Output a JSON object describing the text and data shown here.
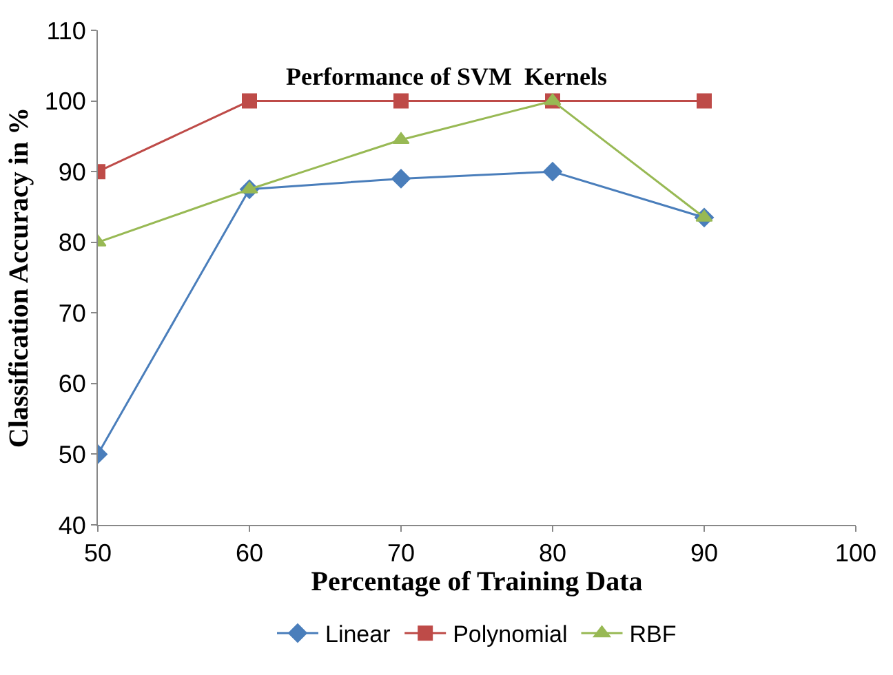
{
  "chart_data": {
    "type": "line",
    "title": "Performance of SVM  Kernels",
    "xlabel": "Percentage of Training Data",
    "ylabel": "Classification Accuracy in %",
    "x": [
      50,
      60,
      70,
      80,
      90
    ],
    "series": [
      {
        "name": "Linear",
        "color": "#4a7ebb",
        "values": [
          50,
          87.5,
          89,
          90,
          83.5
        ],
        "marker": "diamond"
      },
      {
        "name": "Polynomial",
        "color": "#be4b48",
        "values": [
          90,
          100,
          100,
          100,
          100
        ],
        "marker": "square"
      },
      {
        "name": "RBF",
        "color": "#98b954",
        "values": [
          80,
          87.5,
          94.5,
          100,
          83.5
        ],
        "marker": "triangle"
      }
    ],
    "xlim": [
      50,
      100
    ],
    "xticks": [
      50,
      60,
      70,
      80,
      90,
      100
    ],
    "ylim": [
      40,
      110
    ],
    "yticks": [
      40,
      50,
      60,
      70,
      80,
      90,
      100,
      110
    ],
    "grid": false,
    "legend": "bottom",
    "line_style": "solid"
  }
}
